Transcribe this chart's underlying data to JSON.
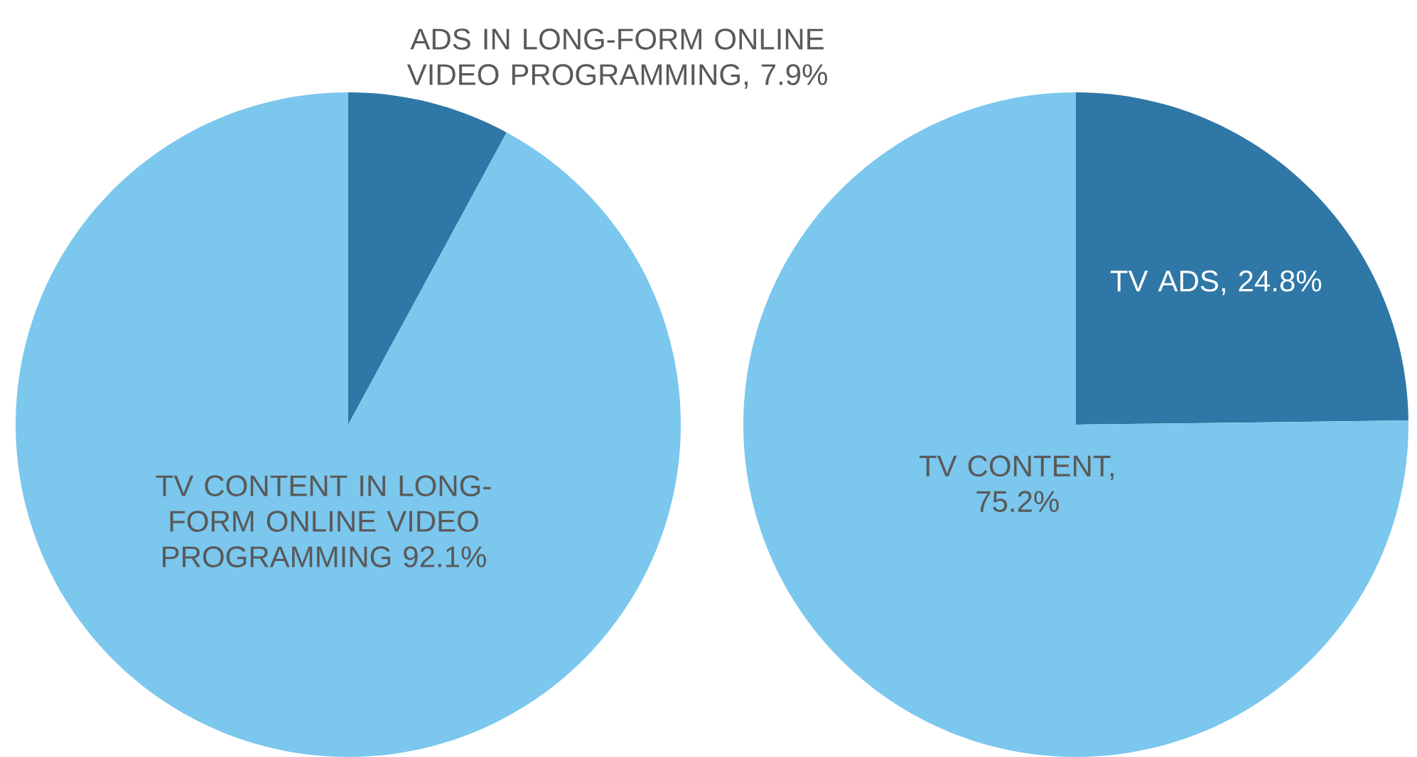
{
  "chart_data": [
    {
      "type": "pie",
      "categories": [
        "ADS IN LONG-FORM ONLINE VIDEO PROGRAMMING, 7.9%",
        "TV CONTENT IN LONG-FORM ONLINE VIDEO PROGRAMMING 92.1%"
      ],
      "values": [
        7.9,
        92.1
      ],
      "colors": [
        "#2e77a6",
        "#7bc7ee"
      ]
    },
    {
      "type": "pie",
      "categories": [
        "TV ADS, 24.8%",
        "TV CONTENT, 75.2%"
      ],
      "values": [
        24.8,
        75.2
      ],
      "colors": [
        "#2e77a6",
        "#7bc7ee"
      ]
    }
  ]
}
